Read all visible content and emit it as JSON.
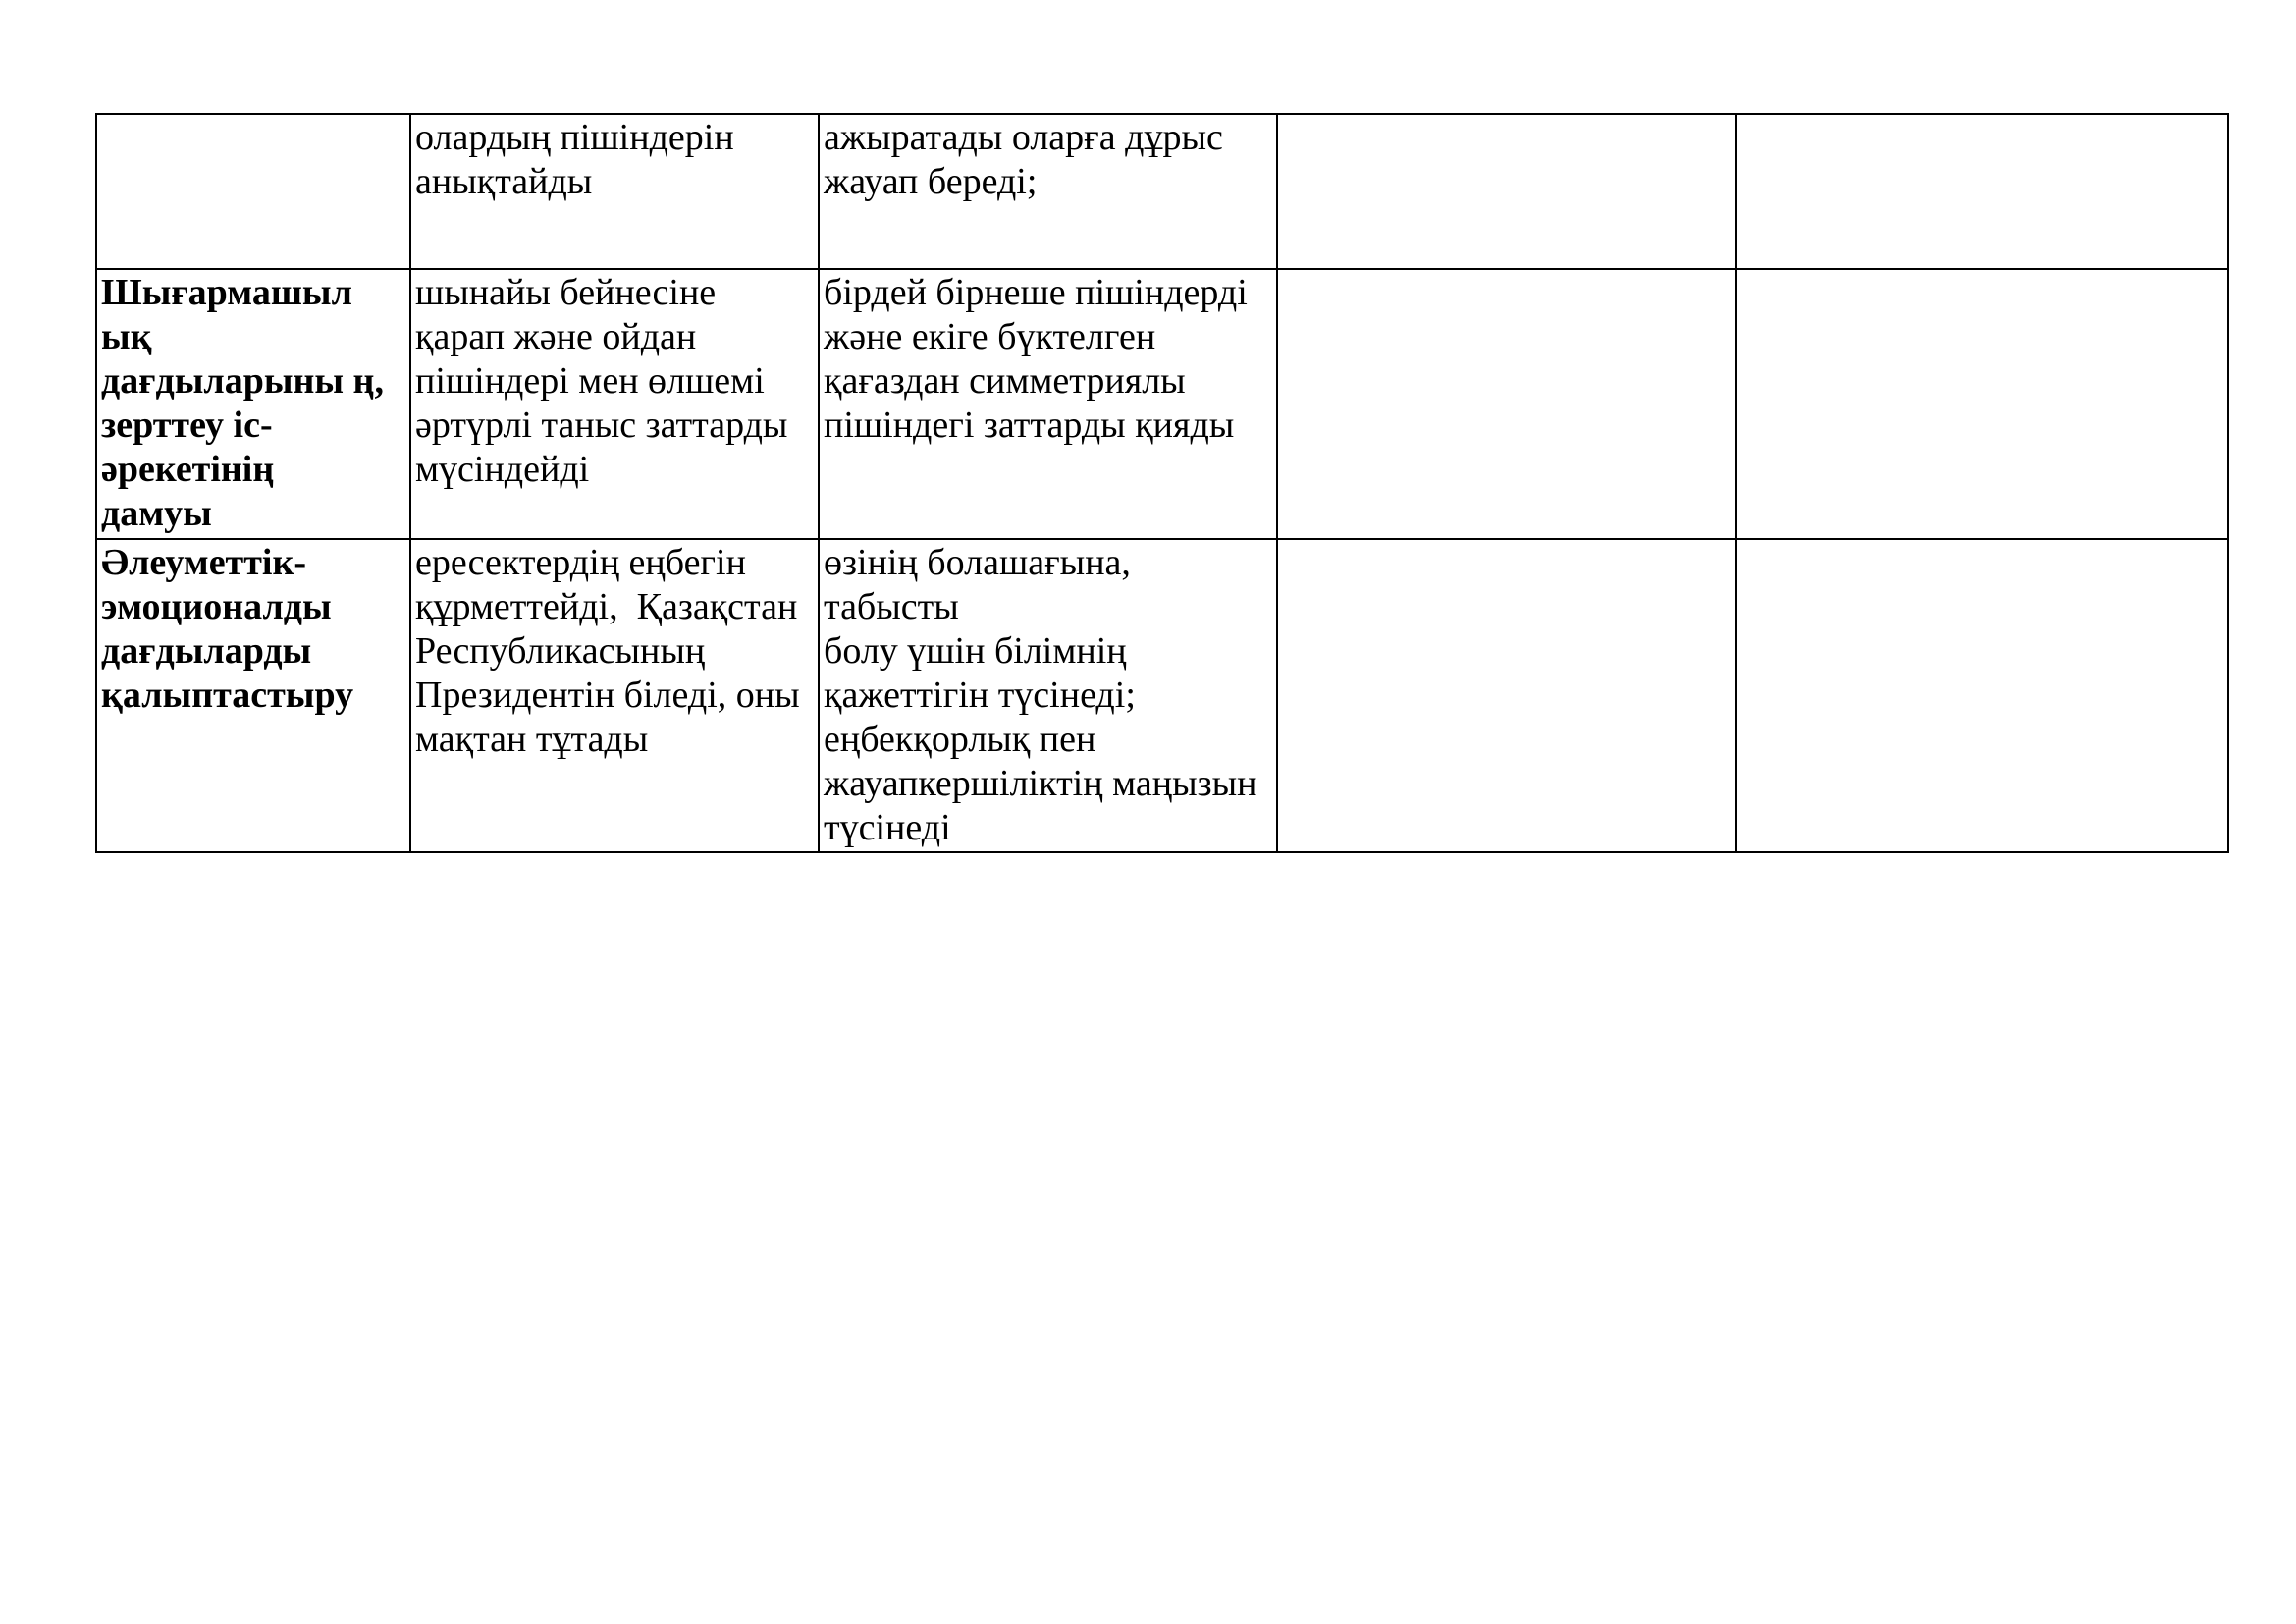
{
  "page": {
    "background_color": "#ffffff",
    "text_color": "#000000",
    "border_color": "#000000",
    "language": "kk"
  },
  "table": {
    "columns": 5,
    "rows": [
      {
        "cells": [
          "",
          "олардың пішіндерін\nанықтайды",
          "ажыратады оларға дұрыс\nжауап береді;",
          "",
          ""
        ]
      },
      {
        "cells": [
          "Шығармашыл\nық\nдағдыларыны ң,\nзерттеу іс-\nәрекетінің\nдамуы",
          "шынайы бейнесіне\nқарап және ойдан\nпішіндері мен өлшемі\nәртүрлі таныс заттарды\nмүсіндейді",
          "бірдей бірнеше пішіндерді\nжәне екіге бүктелген\nқағаздан симметриялы\nпішіндегі заттарды қияды",
          "",
          ""
        ]
      },
      {
        "cells": [
          "Әлеуметтік-\nэмоционалды\nдағдыларды\nқалыптастыру",
          "ересектердің еңбегін\nқұрметтейді,  Қазақстан\nРеспубликасының\nПрезидентін біледі, оны\nмақтан тұтады",
          "өзінің болашағына, табысты\nболу үшін білімнің\nқажеттігін түсінеді;\nеңбекқорлық пен\nжауапкершіліктің маңызын\nтүсінеді",
          "",
          ""
        ]
      }
    ]
  }
}
